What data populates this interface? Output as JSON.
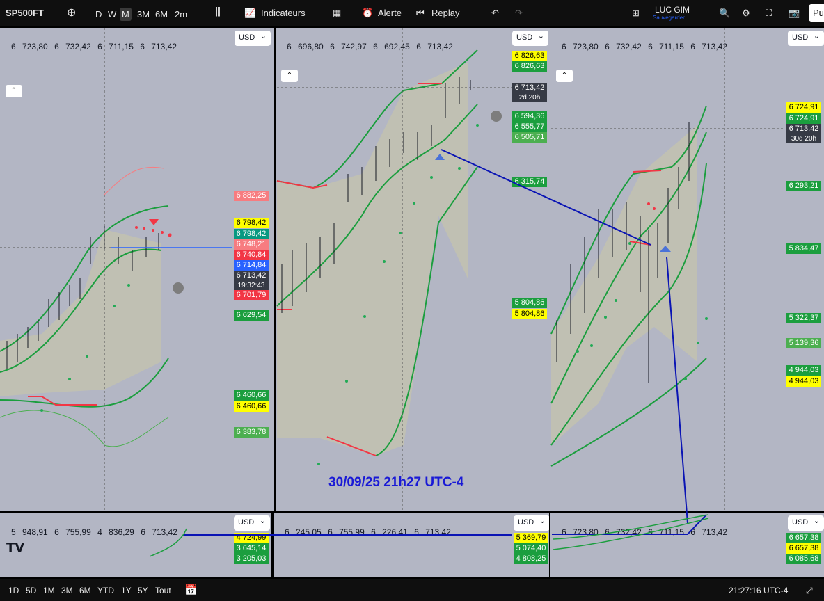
{
  "toolbar": {
    "symbol": "SP500FT",
    "intervals": [
      "D",
      "W",
      "M",
      "3M",
      "6M",
      "2m"
    ],
    "active_interval": "M",
    "indicators": "Indicateurs",
    "alert": "Alerte",
    "replay": "Replay",
    "user": "LUC GIM",
    "save": "Sauvegarder",
    "publish": "Pu"
  },
  "panes": [
    {
      "currency": "USD",
      "ohlc": [
        "6 723,80",
        "6 732,42",
        "6 711,15",
        "6 713,42"
      ],
      "labels": [
        {
          "text": "6 882,25",
          "bg": "#f77c80",
          "fg": "#ffffff"
        },
        {
          "text": "6 798,42",
          "bg": "#ffff00",
          "fg": "#000000"
        },
        {
          "text": "6 798,42",
          "bg": "#089981",
          "fg": "#ffffff"
        },
        {
          "text": "6 748,21",
          "bg": "#f77c80",
          "fg": "#ffffff"
        },
        {
          "text": "6 740,84",
          "bg": "#f23645",
          "fg": "#ffffff"
        },
        {
          "text": "6 714,84",
          "bg": "#2962ff",
          "fg": "#ffffff"
        },
        {
          "text": "6 713,42",
          "bg": "#363a45",
          "fg": "#ffffff",
          "sub": "19:32:43"
        },
        {
          "text": "6 701,79",
          "bg": "#f23645",
          "fg": "#ffffff"
        },
        {
          "text": "6 629,54",
          "bg": "#1b9e3e",
          "fg": "#ffffff"
        },
        {
          "text": "6 460,66",
          "bg": "#1b9e3e",
          "fg": "#ffffff"
        },
        {
          "text": "6 460,66",
          "bg": "#ffff00",
          "fg": "#000000"
        },
        {
          "text": "6 383,78",
          "bg": "#4caf50",
          "fg": "#ffffff"
        }
      ]
    },
    {
      "currency": "USD",
      "ohlc": [
        "6 696,80",
        "6 742,97",
        "6 692,45",
        "6 713,42"
      ],
      "labels": [
        {
          "text": "6 826,63",
          "bg": "#ffff00",
          "fg": "#000000"
        },
        {
          "text": "6 826,63",
          "bg": "#1b9e3e",
          "fg": "#ffffff"
        },
        {
          "text": "6 713,42",
          "bg": "#363a45",
          "fg": "#ffffff",
          "sub": "2d 20h"
        },
        {
          "text": "6 594,36",
          "bg": "#1b9e3e",
          "fg": "#ffffff"
        },
        {
          "text": "6 555,77",
          "bg": "#1b9e3e",
          "fg": "#ffffff"
        },
        {
          "text": "6 505,71",
          "bg": "#4caf50",
          "fg": "#ffffff"
        },
        {
          "text": "6 315,74",
          "bg": "#1b9e3e",
          "fg": "#ffffff"
        },
        {
          "text": "5 804,86",
          "bg": "#1b9e3e",
          "fg": "#ffffff"
        },
        {
          "text": "5 804,86",
          "bg": "#ffff00",
          "fg": "#000000"
        }
      ]
    },
    {
      "currency": "USD",
      "ohlc": [
        "6 723,80",
        "6 732,42",
        "6 711,15",
        "6 713,42"
      ],
      "labels": [
        {
          "text": "6 724,91",
          "bg": "#ffff00",
          "fg": "#000000"
        },
        {
          "text": "6 724,91",
          "bg": "#1b9e3e",
          "fg": "#ffffff"
        },
        {
          "text": "6 713,42",
          "bg": "#363a45",
          "fg": "#ffffff",
          "sub": "30d 20h"
        },
        {
          "text": "6 293,21",
          "bg": "#1b9e3e",
          "fg": "#ffffff"
        },
        {
          "text": "5 834,47",
          "bg": "#1b9e3e",
          "fg": "#ffffff"
        },
        {
          "text": "5 322,37",
          "bg": "#1b9e3e",
          "fg": "#ffffff"
        },
        {
          "text": "5 139,36",
          "bg": "#4caf50",
          "fg": "#ffffff"
        },
        {
          "text": "4 944,03",
          "bg": "#1b9e3e",
          "fg": "#ffffff"
        },
        {
          "text": "4 944,03",
          "bg": "#ffff00",
          "fg": "#000000"
        }
      ]
    }
  ],
  "mini_panes": [
    {
      "currency": "USD",
      "ohlc": [
        "5 948,91",
        "6 755,99",
        "4 836,29",
        "6 713,42"
      ],
      "labels": [
        {
          "text": "4 724,99",
          "bg": "#ffff00",
          "fg": "#000000"
        },
        {
          "text": "3 645,14",
          "bg": "#1b9e3e",
          "fg": "#ffffff"
        },
        {
          "text": "3 205,03",
          "bg": "#1b9e3e",
          "fg": "#ffffff"
        }
      ]
    },
    {
      "currency": "USD",
      "ohlc": [
        "6 245,05",
        "6 755,99",
        "6 226,41",
        "6 713,42"
      ],
      "labels": [
        {
          "text": "5 369,79",
          "bg": "#ffff00",
          "fg": "#000000"
        },
        {
          "text": "5 074,40",
          "bg": "#1b9e3e",
          "fg": "#ffffff"
        },
        {
          "text": "4 808,25",
          "bg": "#1b9e3e",
          "fg": "#ffffff"
        }
      ]
    },
    {
      "currency": "USD",
      "ohlc": [
        "6 723,80",
        "6 732,42",
        "6 711,15",
        "6 713,42"
      ],
      "labels": [
        {
          "text": "6 657,38",
          "bg": "#1b9e3e",
          "fg": "#ffffff"
        },
        {
          "text": "6 657,38",
          "bg": "#ffff00",
          "fg": "#000000"
        },
        {
          "text": "6 085,68",
          "bg": "#1b9e3e",
          "fg": "#ffffff"
        }
      ]
    }
  ],
  "annotation": "30/09/25 21h27 UTC-4",
  "bottom_bar": {
    "ranges": [
      "1D",
      "5D",
      "1M",
      "3M",
      "6M",
      "YTD",
      "1Y",
      "5Y",
      "Tout"
    ],
    "clock": "21:27:16 UTC-4"
  }
}
